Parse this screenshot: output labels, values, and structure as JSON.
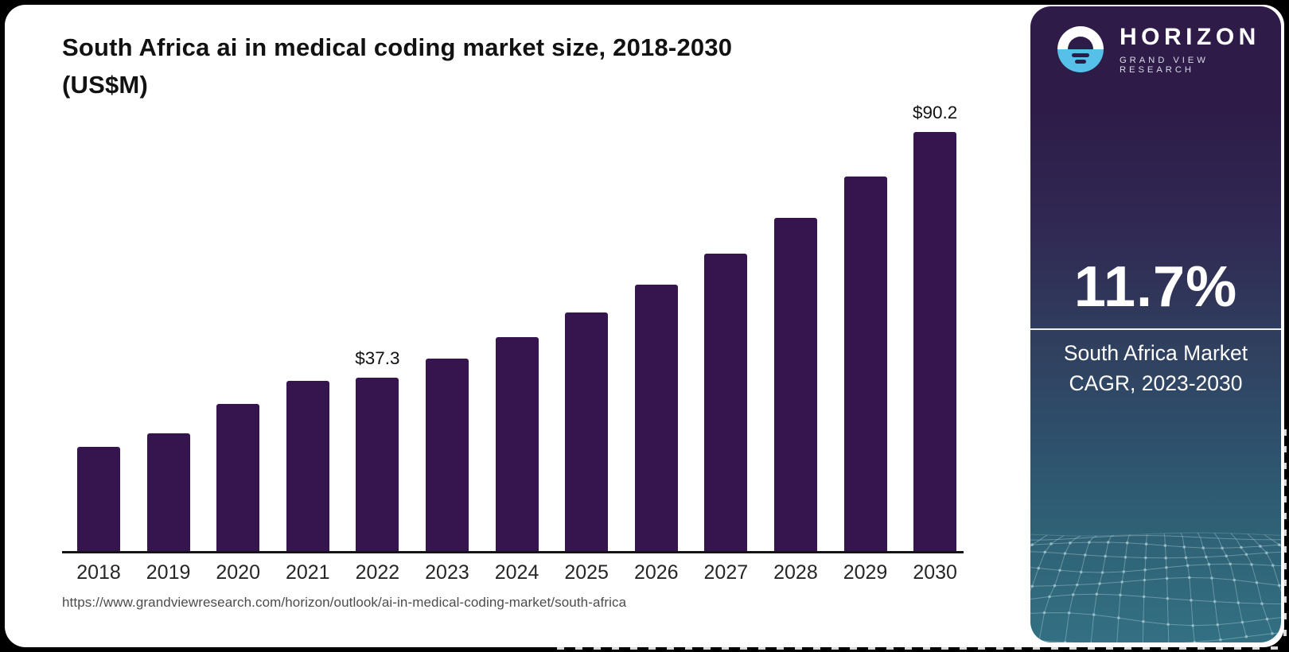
{
  "title": {
    "line1": "South Africa ai in medical coding market size, 2018-2030",
    "line2": "(US$M)"
  },
  "source_url": "https://www.grandviewresearch.com/horizon/outlook/ai-in-medical-coding-market/south-africa",
  "chart_data": {
    "type": "bar",
    "title": "South Africa ai in medical coding market size, 2018-2030 (US$M)",
    "categories": [
      "2018",
      "2019",
      "2020",
      "2021",
      "2022",
      "2023",
      "2024",
      "2025",
      "2026",
      "2027",
      "2028",
      "2029",
      "2030"
    ],
    "values": [
      22.5,
      25.4,
      31.7,
      36.6,
      37.3,
      41.4,
      46.1,
      51.4,
      57.4,
      64.1,
      71.7,
      80.6,
      90.2
    ],
    "data_labels": {
      "2022": "$37.3",
      "2030": "$90.2"
    },
    "bar_color": "#36154E",
    "ylim": [
      0,
      93
    ],
    "xlabel": "",
    "ylabel": "",
    "grid": false,
    "legend": false
  },
  "sidebar": {
    "brand": "HORIZON",
    "brand_sub": "GRAND VIEW RESEARCH",
    "stat_value": "11.7%",
    "stat_label_line1": "South Africa Market",
    "stat_label_line2": "CAGR, 2023-2030",
    "colors": {
      "panel_top": "#2E1B48",
      "panel_bottom": "#337083",
      "logo_blue": "#56C0E8",
      "bar": "#36154E"
    }
  }
}
